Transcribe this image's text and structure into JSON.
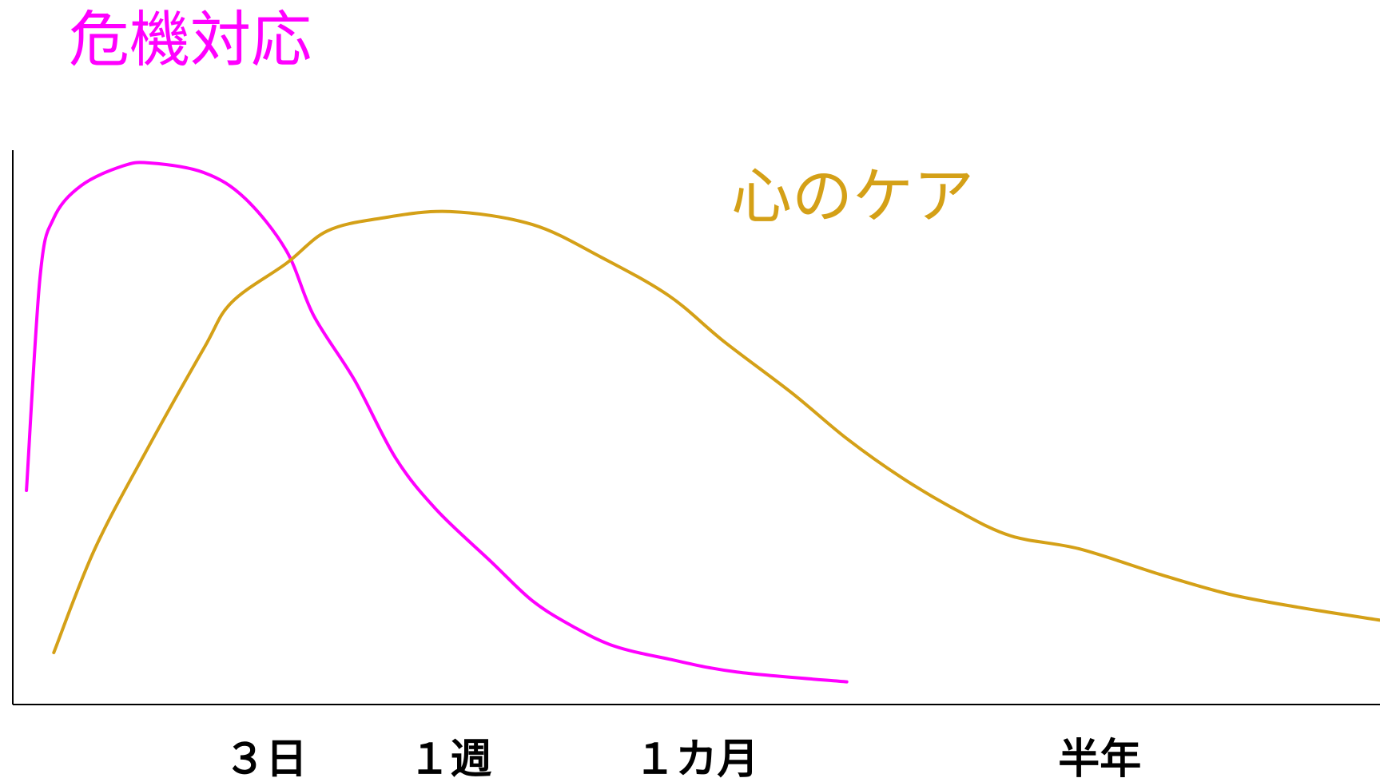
{
  "chart_data": {
    "type": "line",
    "title": "",
    "xlabel": "",
    "ylabel": "",
    "categories": [
      "３日",
      "１週",
      "１カ月",
      "半年"
    ],
    "series": [
      {
        "name": "危機対応",
        "color": "#ff00ff",
        "points": [
          [
            0.01,
            0.33
          ],
          [
            0.02,
            0.66
          ],
          [
            0.03,
            0.75
          ],
          [
            0.05,
            0.8
          ],
          [
            0.08,
            0.83
          ],
          [
            0.1,
            0.835
          ],
          [
            0.14,
            0.82
          ],
          [
            0.17,
            0.78
          ],
          [
            0.2,
            0.7
          ],
          [
            0.22,
            0.6
          ],
          [
            0.25,
            0.5
          ],
          [
            0.28,
            0.38
          ],
          [
            0.31,
            0.3
          ],
          [
            0.35,
            0.22
          ],
          [
            0.38,
            0.16
          ],
          [
            0.41,
            0.12
          ],
          [
            0.44,
            0.09
          ],
          [
            0.48,
            0.07
          ],
          [
            0.53,
            0.05
          ],
          [
            0.61,
            0.035
          ]
        ]
      },
      {
        "name": "心のケア",
        "color": "#d4a017",
        "points": [
          [
            0.03,
            0.08
          ],
          [
            0.06,
            0.24
          ],
          [
            0.1,
            0.4
          ],
          [
            0.14,
            0.55
          ],
          [
            0.16,
            0.62
          ],
          [
            0.2,
            0.68
          ],
          [
            0.23,
            0.73
          ],
          [
            0.27,
            0.75
          ],
          [
            0.32,
            0.76
          ],
          [
            0.38,
            0.74
          ],
          [
            0.43,
            0.69
          ],
          [
            0.48,
            0.63
          ],
          [
            0.52,
            0.56
          ],
          [
            0.57,
            0.48
          ],
          [
            0.61,
            0.41
          ],
          [
            0.65,
            0.35
          ],
          [
            0.69,
            0.3
          ],
          [
            0.73,
            0.26
          ],
          [
            0.78,
            0.24
          ],
          [
            0.84,
            0.2
          ],
          [
            0.89,
            0.17
          ],
          [
            0.94,
            0.15
          ],
          [
            1.0,
            0.13
          ]
        ]
      }
    ],
    "tick_positions": [
      0.185,
      0.32,
      0.5,
      0.795
    ],
    "xlim": [
      0,
      1
    ],
    "ylim": [
      0,
      1
    ],
    "grid": false,
    "legend": "none"
  }
}
